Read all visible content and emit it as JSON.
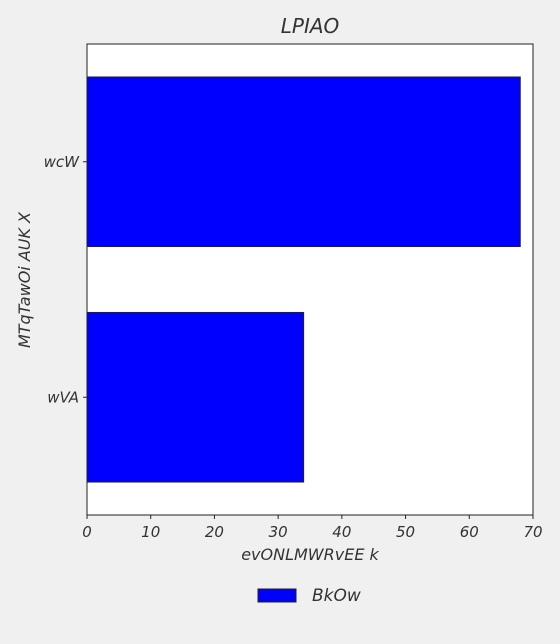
{
  "chart_data": {
    "type": "bar",
    "orientation": "horizontal",
    "title": "LPIAO",
    "xlabel": "evONLMWRvEE k",
    "ylabel": "MTqTawOi AUK X",
    "categories": [
      "wcW",
      "wVA"
    ],
    "series": [
      {
        "name": "BkOw",
        "values": [
          68,
          34
        ],
        "color": "#0000ff"
      }
    ],
    "xlim": [
      0,
      70
    ],
    "xticks": [
      0,
      10,
      20,
      30,
      40,
      50,
      60,
      70
    ],
    "grid": false,
    "legend_position": "bottom-center",
    "background": "#f0f0f0",
    "plot_background": "#ffffff"
  }
}
